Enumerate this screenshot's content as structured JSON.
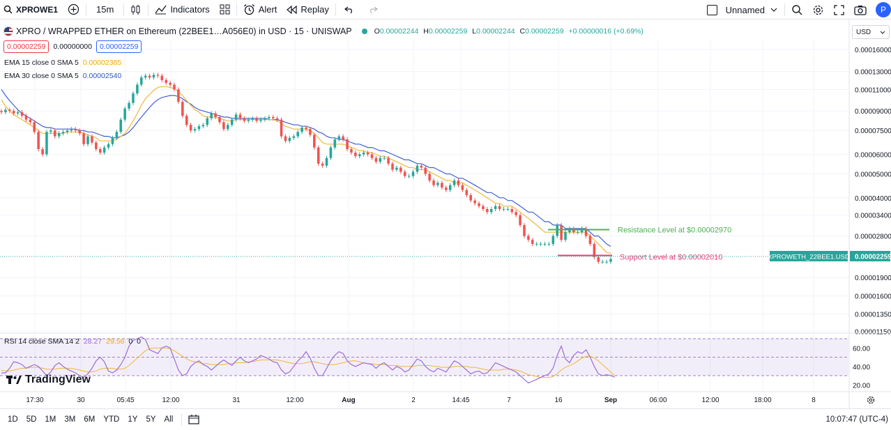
{
  "toolbar": {
    "symbol": "XPROWE1",
    "interval": "15m",
    "indicators_label": "Indicators",
    "alert_label": "Alert",
    "replay_label": "Replay",
    "layout_name": "Unnamed",
    "avatar_letter": "P"
  },
  "legend": {
    "title": "XPRO / WRAPPED ETHER on Ethereum (22BEE1…A056E0) in USD · 15 · UNISWAP",
    "o_label": "O",
    "o_value": "0.00002244",
    "h_label": "H",
    "h_value": "0.00002259",
    "l_label": "L",
    "l_value": "0.00002244",
    "c_label": "C",
    "c_value": "0.00002259",
    "change": "+0.00000016 (+0.69%)",
    "bid": "0.00002259",
    "spread": "0.00000000",
    "ask": "0.00002259",
    "ema15_label": "EMA 15 close 0 SMA 5",
    "ema15_value": "0.00002385",
    "ema30_label": "EMA 30 close 0 SMA 5",
    "ema30_value": "0.00002540",
    "rsi_label": "RSI 14 close SMA 14 2",
    "rsi_value": "28.27",
    "rsi_sma_value": "29.56",
    "rsi_extra": "0",
    "rsi_extra2": "0"
  },
  "currency": "USD",
  "logo_text": "TradingView",
  "bottom": {
    "ranges": [
      "1D",
      "5D",
      "1M",
      "3M",
      "6M",
      "YTD",
      "1Y",
      "5Y",
      "All"
    ],
    "clock": "10:07:47 (UTC-4)"
  },
  "colors": {
    "up": "#26a69a",
    "down": "#ef5350",
    "ema15": "#f2b538",
    "ema30": "#3d60d6",
    "rsi": "#9c6cd6",
    "rsi_sma": "#f2b538",
    "resistance": "#4caf50",
    "support": "#e0457b"
  },
  "chart_data": {
    "type": "candlestick",
    "price_axis_ticks": [
      "0.00016000",
      "0.00013000",
      "0.00011000",
      "0.00009000",
      "0.00007500",
      "0.00006000",
      "0.00005000",
      "0.00004000",
      "0.00003400",
      "0.00002800",
      "0.00001900",
      "0.00001600",
      "0.00001350",
      "0.00001150"
    ],
    "time_axis_ticks": [
      "17:30",
      "30",
      "05:45",
      "12:00",
      "31",
      "12:00",
      "Aug",
      "2",
      "14:45",
      "7",
      "16",
      "Sep",
      "06:00",
      "12:00",
      "18:00",
      "8"
    ],
    "rsi_axis_ticks": [
      "60.00",
      "40.00",
      "20.00"
    ],
    "last_price_label": "XPROWETH_22BEE1.USD",
    "last_price": "0.00002259",
    "annotations": [
      {
        "text": "Resistance Level at $0.00002970",
        "value": 2.97e-05
      },
      {
        "text": "Support Level at $0.00002010",
        "value": 2.01e-05
      }
    ],
    "ylim": [
      1.13e-05,
      0.000175
    ],
    "close": [
      8.9e-05,
      9.1e-05,
      9e-05,
      8.8e-05,
      8.9e-05,
      8.6e-05,
      8.3e-05,
      8.1e-05,
      7.4e-05,
      6.3e-05,
      6e-05,
      7.4e-05,
      7.5e-05,
      7.1e-05,
      7.3e-05,
      7.4e-05,
      7.5e-05,
      7.6e-05,
      7.5e-05,
      7.3e-05,
      6.6e-05,
      7.1e-05,
      6.7e-05,
      6.3e-05,
      6.1e-05,
      6.4e-05,
      6.6e-05,
      7e-05,
      7.4e-05,
      8.3e-05,
      9.2e-05,
      9.7e-05,
      0.000106,
      0.000115,
      0.000123,
      0.000125,
      0.000123,
      0.000126,
      0.000125,
      0.00012,
      0.000117,
      0.000115,
      0.00011,
      9.8e-05,
      8.6e-05,
      7.9e-05,
      7.5e-05,
      7.6e-05,
      7.8e-05,
      7.9e-05,
      8.4e-05,
      8.8e-05,
      8.5e-05,
      8.1e-05,
      7.6e-05,
      7.9e-05,
      8.3e-05,
      8.7e-05,
      8.4e-05,
      8.2e-05,
      8.3e-05,
      8.4e-05,
      8.2e-05,
      8.3e-05,
      8.4e-05,
      8.5e-05,
      8.4e-05,
      8.3e-05,
      7.1e-05,
      6.8e-05,
      7e-05,
      7.1e-05,
      7.4e-05,
      7.7e-05,
      7.6e-05,
      7.2e-05,
      6.4e-05,
      5.5e-05,
      5.4e-05,
      5.8e-05,
      6.4e-05,
      6.9e-05,
      7.1e-05,
      6.9e-05,
      6.3e-05,
      6.1e-05,
      5.9e-05,
      6e-05,
      6.1e-05,
      6e-05,
      5.8e-05,
      5.6e-05,
      5.8e-05,
      5.8e-05,
      5.5e-05,
      5.2e-05,
      5.3e-05,
      5.1e-05,
      4.9e-05,
      4.9e-05,
      5.1e-05,
      5.4e-05,
      5.3e-05,
      5e-05,
      4.7e-05,
      4.5e-05,
      4.6e-05,
      4.4e-05,
      4.3e-05,
      4.5e-05,
      4.7e-05,
      4.5e-05,
      4.3e-05,
      4.1e-05,
      3.9e-05,
      3.8e-05,
      3.7e-05,
      3.6e-05,
      3.5e-05,
      3.6e-05,
      3.7e-05,
      3.6e-05,
      3.6e-05,
      3.6e-05,
      3.5e-05,
      3.4e-05,
      3.1e-05,
      2.8e-05,
      2.7e-05,
      2.6e-05,
      2.6e-05,
      2.6e-05,
      2.6e-05,
      2.6e-05,
      2.8e-05,
      3.1e-05,
      2.7e-05,
      2.9e-05,
      3e-05,
      2.9e-05,
      2.9e-05,
      3e-05,
      2.8e-05,
      2.6e-05,
      2.3e-05,
      2.2e-05,
      2.2e-05,
      2.2e-05,
      2.259e-05
    ],
    "ema15": [
      0.0001,
      9.4e-05,
      9e-05,
      8.7e-05,
      8.5e-05,
      8.3e-05,
      8.1e-05,
      7.9e-05,
      7.7e-05,
      7.5e-05,
      7.3e-05,
      7.3e-05,
      7.3e-05,
      7.3e-05,
      7.3e-05,
      7.3e-05,
      7.4e-05,
      7.4e-05,
      7.4e-05,
      7.4e-05,
      7.3e-05,
      7.2e-05,
      7.1e-05,
      7e-05,
      6.8e-05,
      6.8e-05,
      6.8e-05,
      6.8e-05,
      6.9e-05,
      7.1e-05,
      7.3e-05,
      7.7e-05,
      8.2e-05,
      8.8e-05,
      9.5e-05,
      0.000101,
      0.000105,
      0.000109,
      0.000112,
      0.000113,
      0.000113,
      0.000112,
      0.000111,
      0.000108,
      0.000104,
      9.9e-05,
      9.5e-05,
      9.1e-05,
      8.9e-05,
      8.6e-05,
      8.5e-05,
      8.5e-05,
      8.5e-05,
      8.4e-05,
      8.3e-05,
      8.2e-05,
      8.2e-05,
      8.3e-05,
      8.3e-05,
      8.3e-05,
      8.3e-05,
      8.3e-05,
      8.3e-05,
      8.3e-05,
      8.3e-05,
      8.3e-05,
      8.3e-05,
      8.2e-05,
      8e-05,
      7.8e-05,
      7.7e-05,
      7.6e-05,
      7.6e-05,
      7.6e-05,
      7.6e-05,
      7.5e-05,
      7.3e-05,
      7e-05,
      6.7e-05,
      6.6e-05,
      6.6e-05,
      6.6e-05,
      6.6e-05,
      6.6e-05,
      6.5e-05,
      6.4e-05,
      6.3e-05,
      6.2e-05,
      6.2e-05,
      6.1e-05,
      6.1e-05,
      6e-05,
      5.9e-05,
      5.9e-05,
      5.8e-05,
      5.7e-05,
      5.6e-05,
      5.5e-05,
      5.4e-05,
      5.3e-05,
      5.3e-05,
      5.2e-05,
      5.2e-05,
      5.2e-05,
      5.1e-05,
      5e-05,
      4.9e-05,
      4.8e-05,
      4.7e-05,
      4.7e-05,
      4.6e-05,
      4.6e-05,
      4.6e-05,
      4.5e-05,
      4.4e-05,
      4.3e-05,
      4.2e-05,
      4.1e-05,
      4e-05,
      3.9e-05,
      3.8e-05,
      3.8e-05,
      3.7e-05,
      3.7e-05,
      3.7e-05,
      3.6e-05,
      3.5e-05,
      3.4e-05,
      3.3e-05,
      3.2e-05,
      3.1e-05,
      3e-05,
      2.9e-05,
      2.9e-05,
      2.9e-05,
      2.9e-05,
      2.9e-05,
      2.9e-05,
      2.9e-05,
      2.9e-05,
      2.9e-05,
      2.9e-05,
      2.9e-05,
      2.8e-05,
      2.7e-05,
      2.6e-05,
      2.5e-05,
      2.4e-05,
      2.385e-05
    ],
    "ema30": [
      0.00011,
      0.000104,
      9.9e-05,
      9.5e-05,
      9.1e-05,
      8.8e-05,
      8.6e-05,
      8.4e-05,
      8.2e-05,
      8e-05,
      7.8e-05,
      7.7e-05,
      7.7e-05,
      7.6e-05,
      7.6e-05,
      7.6e-05,
      7.6e-05,
      7.6e-05,
      7.6e-05,
      7.5e-05,
      7.5e-05,
      7.4e-05,
      7.4e-05,
      7.3e-05,
      7.2e-05,
      7.1e-05,
      7.1e-05,
      7e-05,
      7e-05,
      7.1e-05,
      7.2e-05,
      7.4e-05,
      7.7e-05,
      8.1e-05,
      8.5e-05,
      8.9e-05,
      9.3e-05,
      9.7e-05,
      0.0001,
      0.000102,
      0.000103,
      0.000104,
      0.000104,
      0.000103,
      0.000101,
      9.8e-05,
      9.6e-05,
      9.3e-05,
      9.1e-05,
      9e-05,
      8.9e-05,
      8.8e-05,
      8.7e-05,
      8.6e-05,
      8.5e-05,
      8.5e-05,
      8.4e-05,
      8.4e-05,
      8.4e-05,
      8.4e-05,
      8.4e-05,
      8.4e-05,
      8.4e-05,
      8.4e-05,
      8.4e-05,
      8.3e-05,
      8.3e-05,
      8.3e-05,
      8.2e-05,
      8.1e-05,
      8e-05,
      7.9e-05,
      7.9e-05,
      7.8e-05,
      7.8e-05,
      7.7e-05,
      7.6e-05,
      7.4e-05,
      7.3e-05,
      7.1e-05,
      7e-05,
      7e-05,
      6.9e-05,
      6.9e-05,
      6.8e-05,
      6.7e-05,
      6.6e-05,
      6.6e-05,
      6.5e-05,
      6.4e-05,
      6.4e-05,
      6.3e-05,
      6.2e-05,
      6.2e-05,
      6.1e-05,
      6e-05,
      5.9e-05,
      5.8e-05,
      5.7e-05,
      5.7e-05,
      5.6e-05,
      5.5e-05,
      5.5e-05,
      5.4e-05,
      5.3e-05,
      5.3e-05,
      5.2e-05,
      5.1e-05,
      5e-05,
      5e-05,
      4.9e-05,
      4.8e-05,
      4.8e-05,
      4.7e-05,
      4.6e-05,
      4.5e-05,
      4.4e-05,
      4.3e-05,
      4.2e-05,
      4.2e-05,
      4.1e-05,
      4e-05,
      4e-05,
      3.9e-05,
      3.9e-05,
      3.8e-05,
      3.7e-05,
      3.6e-05,
      3.5e-05,
      3.5e-05,
      3.4e-05,
      3.3e-05,
      3.2e-05,
      3.2e-05,
      3.1e-05,
      3.1e-05,
      3.1e-05,
      3e-05,
      3e-05,
      3e-05,
      3e-05,
      3e-05,
      3e-05,
      2.9e-05,
      2.8e-05,
      2.8e-05,
      2.7e-05,
      2.6e-05,
      2.54e-05
    ],
    "rsi": [
      33,
      33,
      38,
      45,
      44,
      42,
      38,
      40,
      42,
      40,
      35,
      30,
      34,
      41,
      44,
      40,
      37,
      35,
      33,
      30,
      28,
      32,
      38,
      46,
      50,
      45,
      35,
      33,
      36,
      42,
      50,
      62,
      68,
      70,
      72,
      69,
      58,
      56,
      54,
      60,
      62,
      60,
      48,
      36,
      30,
      32,
      40,
      44,
      46,
      42,
      40,
      36,
      40,
      44,
      47,
      44,
      41,
      46,
      50,
      46,
      44,
      46,
      48,
      52,
      50,
      48,
      45,
      44,
      36,
      32,
      34,
      40,
      46,
      50,
      56,
      49,
      38,
      30,
      30,
      38,
      46,
      52,
      56,
      54,
      46,
      42,
      40,
      42,
      44,
      43,
      42,
      38,
      42,
      44,
      40,
      36,
      40,
      38,
      34,
      36,
      42,
      48,
      46,
      40,
      36,
      34,
      38,
      36,
      34,
      40,
      46,
      44,
      40,
      36,
      32,
      34,
      35,
      32,
      33,
      38,
      44,
      42,
      40,
      38,
      36,
      34,
      30,
      26,
      22,
      24,
      26,
      28,
      30,
      32,
      38,
      52,
      62,
      48,
      44,
      52,
      56,
      54,
      58,
      50,
      40,
      32,
      30,
      31,
      30,
      28.27
    ],
    "rsi_sma": [
      36,
      35,
      35,
      36,
      37,
      38,
      38,
      39,
      39,
      39,
      38,
      37,
      37,
      37,
      38,
      38,
      38,
      38,
      37,
      36,
      35,
      34,
      34,
      35,
      37,
      38,
      38,
      38,
      37,
      37,
      38,
      41,
      45,
      49,
      53,
      57,
      59,
      60,
      60,
      60,
      60,
      59,
      57,
      54,
      51,
      48,
      46,
      45,
      44,
      43,
      43,
      42,
      42,
      42,
      42,
      43,
      43,
      44,
      44,
      44,
      45,
      45,
      46,
      47,
      47,
      47,
      47,
      47,
      46,
      45,
      44,
      43,
      43,
      43,
      44,
      45,
      45,
      44,
      43,
      42,
      42,
      42,
      43,
      44,
      45,
      46,
      46,
      45,
      44,
      43,
      43,
      42,
      42,
      42,
      41,
      41,
      41,
      40,
      40,
      40,
      40,
      41,
      41,
      41,
      41,
      40,
      40,
      39,
      39,
      39,
      40,
      40,
      40,
      40,
      39,
      39,
      38,
      37,
      36,
      36,
      36,
      36,
      37,
      37,
      37,
      36,
      35,
      33,
      31,
      30,
      29,
      28,
      28,
      28,
      29,
      32,
      36,
      39,
      41,
      43,
      46,
      49,
      51,
      51,
      49,
      46,
      42,
      38,
      34,
      29.56
    ]
  }
}
